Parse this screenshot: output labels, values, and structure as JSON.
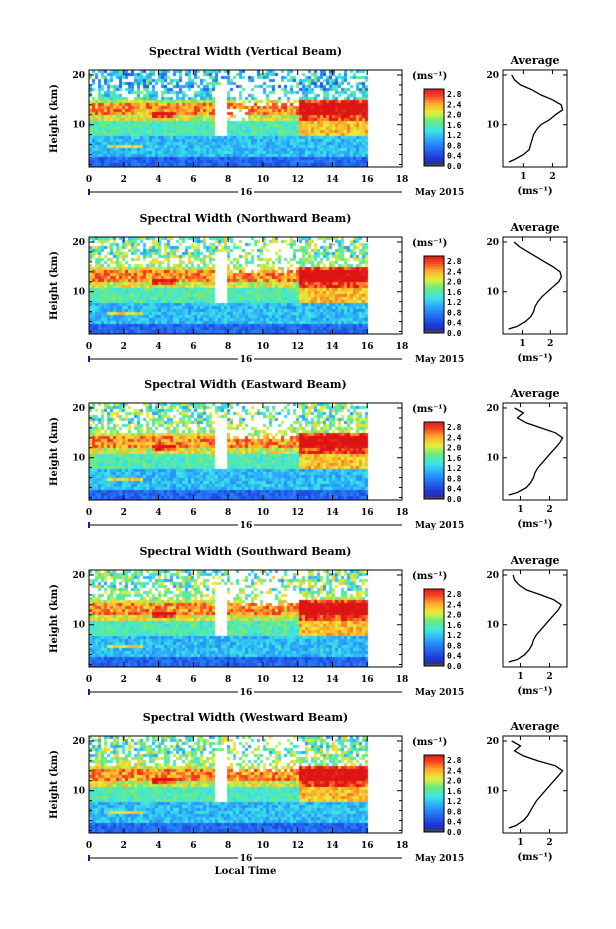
{
  "xlabel": "Local Time",
  "date_label": "May 2015",
  "day_label": "16",
  "colorbar_unit": "(ms⁻¹)",
  "avg_title": "Average",
  "avg_xlabel": "(ms⁻¹)",
  "ylabel": "Height (km)",
  "chart_data": [
    {
      "type": "heatmap",
      "title": "Spectral Width (Vertical Beam)",
      "xlabel": "",
      "ylabel": "Height (km)",
      "x_ticks": [
        0,
        2,
        4,
        6,
        8,
        10,
        12,
        14,
        16,
        18
      ],
      "xlim": [
        0,
        18
      ],
      "data_end": 16,
      "y_ticks": [
        10,
        20
      ],
      "ylim": [
        1.5,
        21
      ],
      "colorbar_ticks": [
        0.0,
        0.4,
        0.8,
        1.2,
        1.6,
        2.0,
        2.4,
        2.8
      ],
      "colorbar_range": [
        0.0,
        3.0
      ],
      "average_profile": {
        "title": "Average",
        "xlabel": "(ms⁻¹)",
        "x_ticks": [
          1,
          2
        ],
        "xlim": [
          0.3,
          2.5
        ],
        "heights": [
          2.5,
          3,
          4,
          5,
          6,
          7,
          8,
          9,
          10,
          11,
          12,
          13,
          14,
          15,
          16,
          17,
          18,
          19,
          20
        ],
        "values": [
          0.5,
          0.7,
          1.0,
          1.2,
          1.25,
          1.3,
          1.35,
          1.45,
          1.6,
          1.9,
          2.1,
          2.35,
          2.3,
          2.0,
          1.6,
          1.3,
          0.9,
          0.7,
          0.6
        ]
      }
    },
    {
      "type": "heatmap",
      "title": "Spectral Width (Northward Beam)",
      "xlabel": "",
      "ylabel": "Height (km)",
      "x_ticks": [
        0,
        2,
        4,
        6,
        8,
        10,
        12,
        14,
        16,
        18
      ],
      "xlim": [
        0,
        18
      ],
      "data_end": 16,
      "y_ticks": [
        10,
        20
      ],
      "ylim": [
        1.5,
        21
      ],
      "colorbar_ticks": [
        0.0,
        0.4,
        0.8,
        1.2,
        1.6,
        2.0,
        2.4,
        2.8
      ],
      "colorbar_range": [
        0.0,
        3.0
      ],
      "average_profile": {
        "title": "Average",
        "xlabel": "(ms⁻¹)",
        "x_ticks": [
          1,
          2
        ],
        "xlim": [
          0.3,
          2.6
        ],
        "heights": [
          2.5,
          3,
          4,
          5,
          6,
          7,
          8,
          9,
          10,
          11,
          12,
          13,
          14,
          15,
          16,
          17,
          18,
          19,
          20
        ],
        "values": [
          0.5,
          0.8,
          1.1,
          1.3,
          1.4,
          1.45,
          1.55,
          1.7,
          1.9,
          2.1,
          2.3,
          2.4,
          2.35,
          2.1,
          1.8,
          1.5,
          1.2,
          0.9,
          0.7
        ]
      }
    },
    {
      "type": "heatmap",
      "title": "Spectral Width (Eastward Beam)",
      "xlabel": "",
      "ylabel": "Height (km)",
      "x_ticks": [
        0,
        2,
        4,
        6,
        8,
        10,
        12,
        14,
        16,
        18
      ],
      "xlim": [
        0,
        18
      ],
      "data_end": 16,
      "y_ticks": [
        10,
        20
      ],
      "ylim": [
        1.5,
        21
      ],
      "colorbar_ticks": [
        0.0,
        0.4,
        0.8,
        1.2,
        1.6,
        2.0,
        2.4,
        2.8
      ],
      "colorbar_range": [
        0.0,
        3.0
      ],
      "average_profile": {
        "title": "Average",
        "xlabel": "(ms⁻¹)",
        "x_ticks": [
          1,
          2
        ],
        "xlim": [
          0.4,
          2.6
        ],
        "heights": [
          2.5,
          3,
          4,
          5,
          6,
          7,
          8,
          9,
          10,
          11,
          12,
          13,
          14,
          15,
          16,
          17,
          18,
          19,
          20
        ],
        "values": [
          0.6,
          0.9,
          1.2,
          1.35,
          1.45,
          1.5,
          1.6,
          1.75,
          1.9,
          2.05,
          2.2,
          2.35,
          2.45,
          2.2,
          1.7,
          1.2,
          0.9,
          1.1,
          0.8
        ]
      }
    },
    {
      "type": "heatmap",
      "title": "Spectral Width (Southward Beam)",
      "xlabel": "",
      "ylabel": "Height (km)",
      "x_ticks": [
        0,
        2,
        4,
        6,
        8,
        10,
        12,
        14,
        16,
        18
      ],
      "xlim": [
        0,
        18
      ],
      "data_end": 16,
      "y_ticks": [
        10,
        20
      ],
      "ylim": [
        1.5,
        21
      ],
      "colorbar_ticks": [
        0.0,
        0.4,
        0.8,
        1.2,
        1.6,
        2.0,
        2.4,
        2.8
      ],
      "colorbar_range": [
        0.0,
        3.0
      ],
      "average_profile": {
        "title": "Average",
        "xlabel": "(ms⁻¹)",
        "x_ticks": [
          1,
          2
        ],
        "xlim": [
          0.4,
          2.6
        ],
        "heights": [
          2.5,
          3,
          4,
          5,
          6,
          7,
          8,
          9,
          10,
          11,
          12,
          13,
          14,
          15,
          16,
          17,
          18,
          19,
          20
        ],
        "values": [
          0.6,
          0.9,
          1.15,
          1.3,
          1.4,
          1.45,
          1.55,
          1.7,
          1.85,
          2.0,
          2.15,
          2.3,
          2.4,
          2.15,
          1.7,
          1.2,
          0.95,
          0.8,
          0.75
        ]
      }
    },
    {
      "type": "heatmap",
      "title": "Spectral Width (Westward Beam)",
      "xlabel": "Local Time",
      "ylabel": "Height (km)",
      "x_ticks": [
        0,
        2,
        4,
        6,
        8,
        10,
        12,
        14,
        16,
        18
      ],
      "xlim": [
        0,
        18
      ],
      "data_end": 16,
      "y_ticks": [
        10,
        20
      ],
      "ylim": [
        1.5,
        21
      ],
      "colorbar_ticks": [
        0.0,
        0.4,
        0.8,
        1.2,
        1.6,
        2.0,
        2.4,
        2.8
      ],
      "colorbar_range": [
        0.0,
        3.0
      ],
      "average_profile": {
        "title": "Average",
        "xlabel": "(ms⁻¹)",
        "x_ticks": [
          1,
          2
        ],
        "xlim": [
          0.4,
          2.6
        ],
        "heights": [
          2.5,
          3,
          4,
          5,
          6,
          7,
          8,
          9,
          10,
          11,
          12,
          13,
          14,
          15,
          16,
          17,
          18,
          19,
          20
        ],
        "values": [
          0.6,
          0.85,
          1.1,
          1.25,
          1.35,
          1.45,
          1.55,
          1.7,
          1.85,
          2.0,
          2.15,
          2.3,
          2.45,
          2.2,
          1.6,
          1.1,
          0.8,
          1.0,
          0.7
        ]
      }
    }
  ]
}
